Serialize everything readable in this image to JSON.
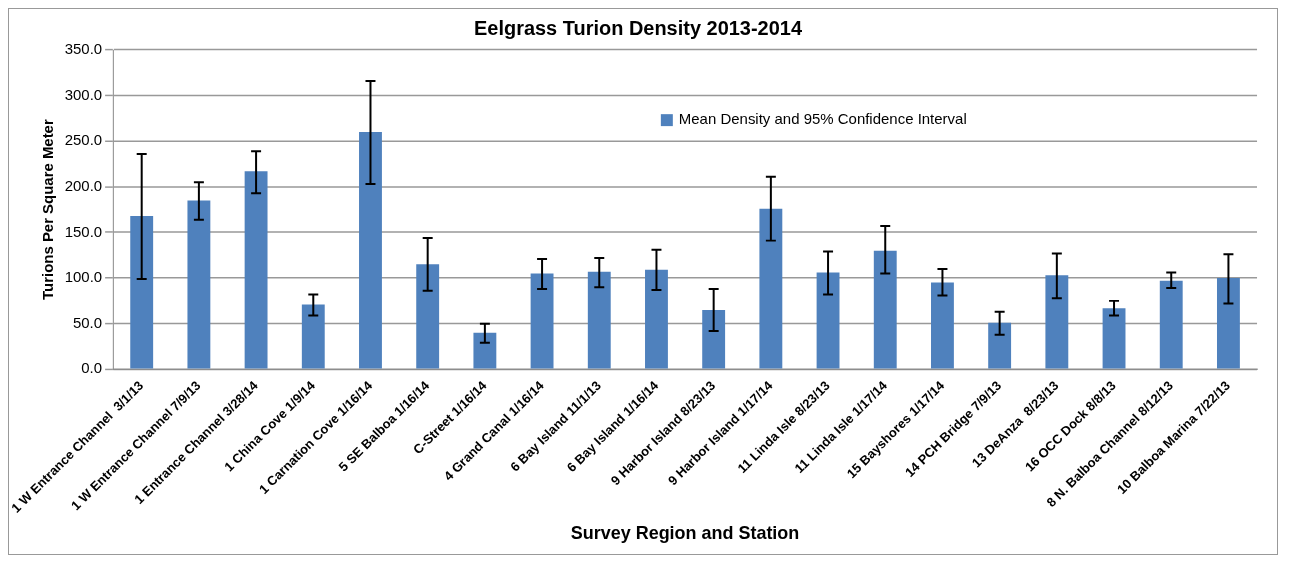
{
  "chart_data": {
    "type": "bar",
    "title": "Eelgrass Turion Density 2013-2014",
    "xlabel": "Survey Region and Station",
    "ylabel": "Turions Per Square Meter",
    "categories": [
      "1 W Entrance Channel  3/1/13",
      "1 W Entrance Channel 7/9/13",
      "1 Entrance Channel 3/28/14",
      "1 China Cove 1/9/14",
      "1 Carnation Cove 1/16/14",
      "5 SE Balboa 1/16/14",
      "C-Street 1/16/14",
      "4 Grand Canal 1/16/14",
      "6 Bay Island 11/1/13",
      "6 Bay Island 1/16/14",
      "9 Harbor Island 8/23/13",
      "9 Harbor Island 1/17/14",
      "11 Linda Isle 8/23/13",
      "11 Linda Isle 1/17/14",
      "15 Bayshores 1/17/14",
      "14 PCH Bridge 7/9/13",
      "13 DeAnza  8/23/13",
      "16 OCC Dock 8/8/13",
      "8 N. Balboa Channel 8/12/13",
      "10 Balboa Marina 7/22/13"
    ],
    "series": [
      {
        "name": "Mean Density and 95% Confidence Interval",
        "color": "#4f81bd",
        "values": [
          168,
          185,
          217,
          71,
          260,
          115,
          40,
          105,
          107,
          109,
          65,
          176,
          106,
          130,
          95,
          51,
          103,
          67,
          97,
          100
        ],
        "errors": [
          [
            99,
            236
          ],
          [
            164,
            205
          ],
          [
            193,
            239
          ],
          [
            59,
            82
          ],
          [
            203,
            316
          ],
          [
            86,
            144
          ],
          [
            29,
            50
          ],
          [
            88,
            121
          ],
          [
            90,
            122
          ],
          [
            87,
            131
          ],
          [
            42,
            88
          ],
          [
            141,
            211
          ],
          [
            82,
            129
          ],
          [
            105,
            157
          ],
          [
            81,
            110
          ],
          [
            38,
            63
          ],
          [
            78,
            127
          ],
          [
            59,
            75
          ],
          [
            89,
            106
          ],
          [
            72,
            126
          ]
        ]
      }
    ],
    "ylim": [
      0,
      350
    ],
    "yticks": [
      {
        "value": 0,
        "label": "0.0"
      },
      {
        "value": 50,
        "label": "50.0"
      },
      {
        "value": 100,
        "label": "100.0"
      },
      {
        "value": 150,
        "label": "150.0"
      },
      {
        "value": 200,
        "label": "200.0"
      },
      {
        "value": 250,
        "label": "250.0"
      },
      {
        "value": 300,
        "label": "300.0"
      },
      {
        "value": 350,
        "label": "350.0"
      }
    ],
    "grid": "y",
    "legend": "top"
  }
}
